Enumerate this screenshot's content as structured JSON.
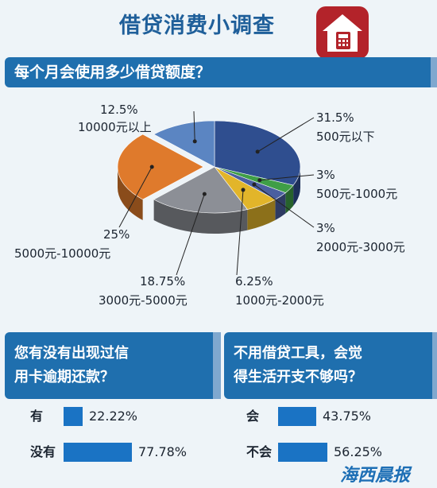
{
  "header": {
    "title": "借贷消费小调查"
  },
  "q1": {
    "question": "每个月会使用多少借贷额度？"
  },
  "chart_data": [
    {
      "type": "pie",
      "slices": [
        {
          "label": "500元以下",
          "percent_text": "31.5%",
          "value": 31.5,
          "color": "#2f4e8f"
        },
        {
          "label": "500元-1000元",
          "percent_text": "3%",
          "value": 3,
          "color": "#3f9e47"
        },
        {
          "label": "2000元-3000元",
          "percent_text": "3%",
          "value": 3,
          "color": "#4a5fa0"
        },
        {
          "label": "1000元-2000元",
          "percent_text": "6.25%",
          "value": 6.25,
          "color": "#e2b52a"
        },
        {
          "label": "3000元-5000元",
          "percent_text": "18.75%",
          "value": 18.75,
          "color": "#8c8f96"
        },
        {
          "label": "5000元-10000元",
          "percent_text": "25%",
          "value": 25,
          "color": "#df7a2c"
        },
        {
          "label": "10000元以上",
          "percent_text": "12.5%",
          "value": 12.5,
          "color": "#5b85c2"
        }
      ]
    },
    {
      "type": "bar",
      "title": "您有没有出现过信用卡逾期还款？",
      "categories": [
        "有",
        "没有"
      ],
      "values": [
        22.22,
        77.78
      ],
      "value_text": [
        "22.22%",
        "77.78%"
      ],
      "xlim": [
        0,
        100
      ]
    },
    {
      "type": "bar",
      "title": "不用借贷工具，会觉得生活开支不够吗？",
      "categories": [
        "会",
        "不会"
      ],
      "values": [
        43.75,
        56.25
      ],
      "value_text": [
        "43.75%",
        "56.25%"
      ],
      "xlim": [
        0,
        100
      ]
    }
  ],
  "q2": {
    "question_line1": "您有没有出现过信",
    "question_line2": "用卡逾期还款？"
  },
  "q3": {
    "question_line1": "不用借贷工具，会觉",
    "question_line2": "得生活开支不够吗？"
  },
  "footer": {
    "logo_text": "海西晨报"
  },
  "colors": {
    "band": "#1f6fae",
    "bar": "#1a73c4",
    "title": "#1f5f9a",
    "house": "#b3232a"
  },
  "icons": {
    "house": "house-calculator-icon"
  }
}
